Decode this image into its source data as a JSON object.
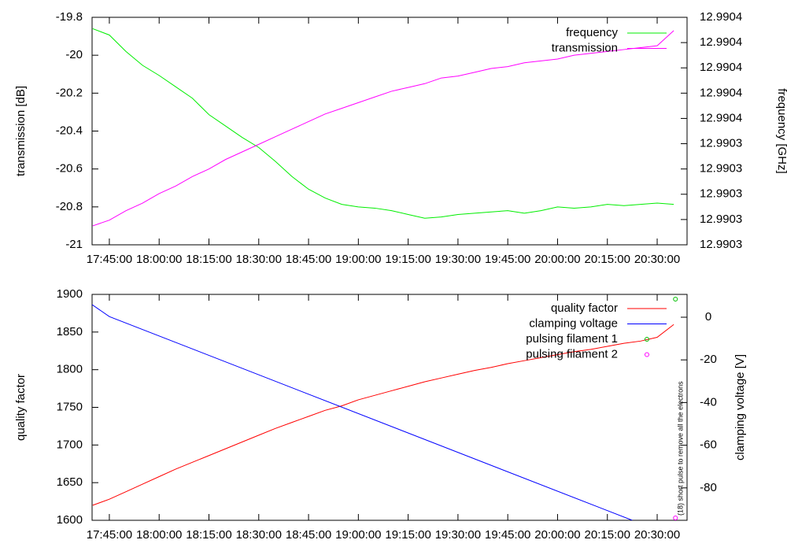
{
  "chart_data": [
    {
      "type": "line",
      "ylabel": "transmission [dB]",
      "y2label": "frequency [GHz]",
      "x": [
        "17:40:00",
        "17:45:00",
        "17:50:00",
        "17:55:00",
        "18:00:00",
        "18:05:00",
        "18:10:00",
        "18:15:00",
        "18:20:00",
        "18:25:00",
        "18:30:00",
        "18:35:00",
        "18:40:00",
        "18:45:00",
        "18:50:00",
        "18:55:00",
        "19:00:00",
        "19:05:00",
        "19:10:00",
        "19:15:00",
        "19:20:00",
        "19:25:00",
        "19:30:00",
        "19:35:00",
        "19:40:00",
        "19:45:00",
        "19:50:00",
        "19:55:00",
        "20:00:00",
        "20:05:00",
        "20:10:00",
        "20:15:00",
        "20:20:00",
        "20:25:00",
        "20:30:00",
        "20:35:00"
      ],
      "xlim": [
        "17:39:48",
        "20:39:00"
      ],
      "xticks": [
        "17:45:00",
        "18:00:00",
        "18:15:00",
        "18:30:00",
        "18:45:00",
        "19:00:00",
        "19:15:00",
        "19:30:00",
        "19:45:00",
        "20:00:00",
        "20:15:00",
        "20:30:00"
      ],
      "ylim": [
        -21,
        -19.8
      ],
      "yticks": [
        -21,
        -20.8,
        -20.6,
        -20.4,
        -20.2,
        -20,
        -19.8
      ],
      "y2lim": [
        12.99026,
        12.99044
      ],
      "y2ticks": [
        {
          "value": 12.99026,
          "label": "12.9903"
        },
        {
          "value": 12.99028,
          "label": "12.9903"
        },
        {
          "value": 12.9903,
          "label": "12.9903"
        },
        {
          "value": 12.99032,
          "label": "12.9903"
        },
        {
          "value": 12.99034,
          "label": "12.9903"
        },
        {
          "value": 12.99036,
          "label": "12.9904"
        },
        {
          "value": 12.99038,
          "label": "12.9904"
        },
        {
          "value": 12.9904,
          "label": "12.9904"
        },
        {
          "value": 12.99042,
          "label": "12.9904"
        },
        {
          "value": 12.99044,
          "label": "12.9904"
        }
      ],
      "legend": "upper right",
      "series": [
        {
          "name": "frequency",
          "color": "#00ee00",
          "axis": "y2",
          "values": [
            12.990431,
            12.990426,
            12.990413,
            12.990402,
            12.990394,
            12.990385,
            12.990376,
            12.990363,
            12.990354,
            12.990345,
            12.990337,
            12.990326,
            12.990314,
            12.990304,
            12.990297,
            12.990292,
            12.99029,
            12.990289,
            12.990287,
            12.990284,
            12.990281,
            12.990282,
            12.990284,
            12.990285,
            12.990286,
            12.990287,
            12.990285,
            12.990287,
            12.99029,
            12.990289,
            12.99029,
            12.990292,
            12.990291,
            12.990292,
            12.990293,
            12.990292
          ]
        },
        {
          "name": "transmission",
          "color": "#ff00ff",
          "values": [
            -20.9,
            -20.87,
            -20.82,
            -20.78,
            -20.73,
            -20.69,
            -20.64,
            -20.6,
            -20.55,
            -20.51,
            -20.47,
            -20.43,
            -20.39,
            -20.35,
            -20.31,
            -20.28,
            -20.25,
            -20.22,
            -20.19,
            -20.17,
            -20.15,
            -20.12,
            -20.11,
            -20.09,
            -20.07,
            -20.06,
            -20.04,
            -20.03,
            -20.02,
            -20,
            -19.99,
            -19.98,
            -19.97,
            -19.96,
            -19.95,
            -19.87
          ]
        }
      ]
    },
    {
      "type": "line",
      "ylabel": "quality factor",
      "y2label": "clamping voltage [V]",
      "annotation": "(18) short pulse to remove all the electrons",
      "x": [
        "17:40:00",
        "17:45:00",
        "17:50:00",
        "17:55:00",
        "18:00:00",
        "18:05:00",
        "18:10:00",
        "18:15:00",
        "18:20:00",
        "18:25:00",
        "18:30:00",
        "18:35:00",
        "18:40:00",
        "18:45:00",
        "18:50:00",
        "18:55:00",
        "19:00:00",
        "19:05:00",
        "19:10:00",
        "19:15:00",
        "19:20:00",
        "19:25:00",
        "19:30:00",
        "19:35:00",
        "19:40:00",
        "19:45:00",
        "19:50:00",
        "19:55:00",
        "20:00:00",
        "20:05:00",
        "20:10:00",
        "20:15:00",
        "20:20:00",
        "20:25:00",
        "20:30:00",
        "20:35:00"
      ],
      "xlim": [
        "17:39:48",
        "20:39:00"
      ],
      "xticks": [
        "17:45:00",
        "18:00:00",
        "18:15:00",
        "18:30:00",
        "18:45:00",
        "19:00:00",
        "19:15:00",
        "19:30:00",
        "19:45:00",
        "20:00:00",
        "20:15:00",
        "20:30:00"
      ],
      "ylim": [
        1600,
        1900
      ],
      "yticks": [
        1600,
        1650,
        1700,
        1750,
        1800,
        1850,
        1900
      ],
      "y2lim": [
        -95.2,
        10.7
      ],
      "y2ticks": [
        -80,
        -60,
        -40,
        -20,
        0
      ],
      "legend": "upper right",
      "series": [
        {
          "name": "quality factor",
          "color": "#ff0000",
          "values": [
            1620,
            1628,
            1638,
            1648,
            1658,
            1668,
            1677,
            1686,
            1695,
            1704,
            1713,
            1722,
            1730,
            1738,
            1746,
            1752,
            1760,
            1766,
            1772,
            1778,
            1784,
            1789,
            1794,
            1799,
            1803,
            1808,
            1812,
            1816,
            1820,
            1824,
            1827,
            1831,
            1835,
            1838,
            1843,
            1860
          ]
        },
        {
          "name": "clamping voltage",
          "color": "#0000ff",
          "axis": "y2",
          "x": [
            "17:39:48",
            "17:45:00",
            "20:22:30"
          ],
          "values": [
            5.9,
            0.3,
            -95.2
          ]
        },
        {
          "name": "pulsing filament 1",
          "color": "#00c000",
          "axis": "y2",
          "style": "points",
          "x": [
            "20:35:30"
          ],
          "values": [
            8.5
          ]
        },
        {
          "name": "pulsing filament 2",
          "color": "#ff00ff",
          "axis": "y2",
          "style": "points",
          "x": [
            "20:35:30"
          ],
          "values": [
            -94.1
          ]
        }
      ]
    }
  ]
}
